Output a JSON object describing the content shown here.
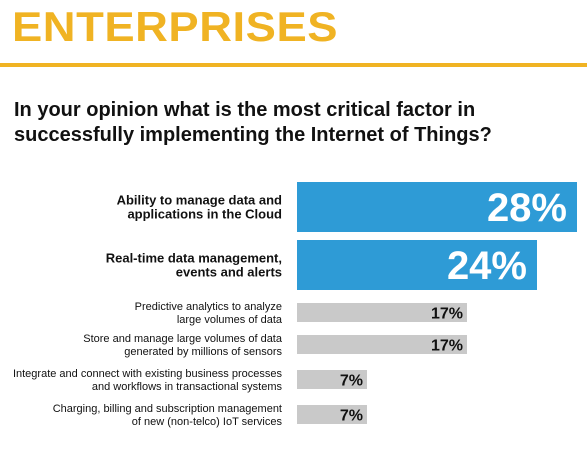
{
  "header": {
    "title": "ENTERPRISES",
    "accent_color": "#f0b323"
  },
  "question": "In your opinion what is the most critical factor in successfully implementing the Internet of Things?",
  "chart_data": {
    "type": "bar",
    "orientation": "horizontal",
    "title": "",
    "categories": [
      [
        "Ability to manage data and",
        "applications in the Cloud"
      ],
      [
        "Real-time data management,",
        "events and alerts"
      ],
      [
        "Predictive analytics to analyze",
        "large volumes of data"
      ],
      [
        "Store and manage large volumes of data",
        "generated by millions of sensors"
      ],
      [
        "Integrate and connect with existing business processes",
        "and workflows in transactional systems"
      ],
      [
        "Charging, billing and subscription management",
        "of new (non-telco) IoT services"
      ]
    ],
    "values": [
      28,
      24,
      17,
      17,
      7,
      7
    ],
    "value_labels": [
      "28%",
      "24%",
      "17%",
      "17%",
      "7%",
      "7%"
    ],
    "highlight": [
      true,
      true,
      false,
      false,
      false,
      false
    ],
    "colors": {
      "highlight_bar": "#2e9bd6",
      "highlight_label": "#ffffff",
      "normal_bar": "#c9c9c9",
      "normal_label": "#111111"
    },
    "xlim": [
      0,
      28
    ],
    "grid": false,
    "legend": "none"
  }
}
